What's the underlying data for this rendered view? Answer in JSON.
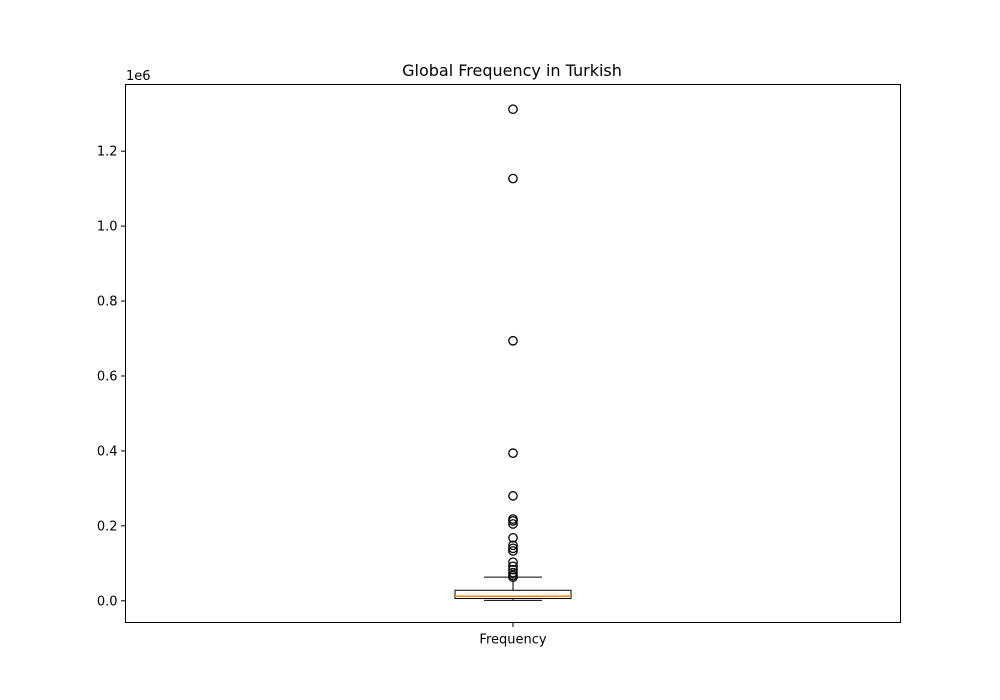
{
  "chart_data": {
    "type": "box",
    "title": "Global Frequency in Turkish",
    "xlabel": "",
    "ylabel": "",
    "y_offset_label": "1e6",
    "categories": [
      "Frequency"
    ],
    "ylim": [
      -0.058,
      1.378
    ],
    "yticks": [
      0.0,
      0.2,
      0.4,
      0.6,
      0.8,
      1.0,
      1.2
    ],
    "ytick_labels": [
      "0.0",
      "0.2",
      "0.4",
      "0.6",
      "0.8",
      "1.0",
      "1.2"
    ],
    "grid": false,
    "units_multiplier": 1000000,
    "boxes": [
      {
        "category": "Frequency",
        "whisker_low": 0.001,
        "q1": 0.006,
        "median": 0.012,
        "q3": 0.028,
        "whisker_high": 0.063,
        "outliers": [
          1.312,
          1.127,
          0.694,
          0.394,
          0.28,
          0.218,
          0.213,
          0.205,
          0.168,
          0.148,
          0.14,
          0.133,
          0.103,
          0.092,
          0.083,
          0.075,
          0.068,
          0.063
        ]
      }
    ],
    "colors": {
      "box": "#000000",
      "median": "#ff7f0e",
      "outlier_edge": "#000000"
    }
  }
}
